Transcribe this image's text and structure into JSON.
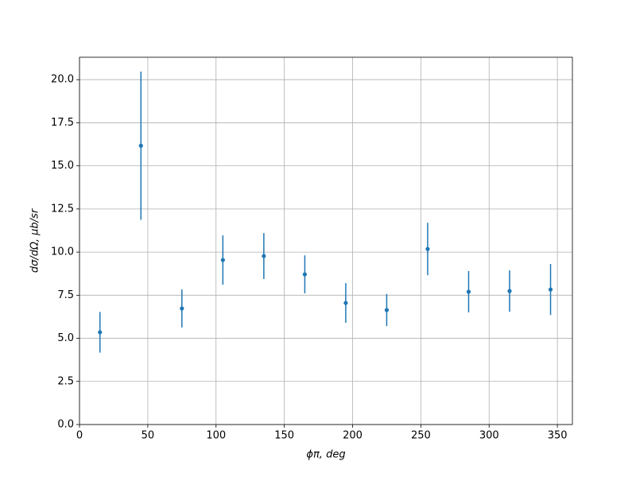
{
  "chart_data": {
    "type": "errorbar",
    "xlabel": "ϕπ, deg",
    "ylabel": "dσ/dΩ, μb/sr",
    "x": [
      15,
      45,
      75,
      105,
      135,
      165,
      195,
      225,
      255,
      285,
      315,
      345
    ],
    "values": [
      5.35,
      16.17,
      6.73,
      9.54,
      9.77,
      8.71,
      7.05,
      6.64,
      10.18,
      7.7,
      7.74,
      7.83
    ],
    "errors": [
      1.18,
      4.3,
      1.1,
      1.43,
      1.33,
      1.1,
      1.15,
      0.93,
      1.52,
      1.2,
      1.2,
      1.48
    ],
    "color": "#1f77b4",
    "xlim": [
      0,
      361
    ],
    "ylim": [
      0,
      21.3
    ],
    "xticks": [
      0,
      50,
      100,
      150,
      200,
      250,
      300,
      350
    ],
    "yticks": [
      {
        "value": 0,
        "label": "0.0"
      },
      2.5,
      {
        "value": 5,
        "label": "5.0"
      },
      7.5,
      {
        "value": 10,
        "label": "10.0"
      },
      12.5,
      {
        "value": 15,
        "label": "15.0"
      },
      17.5,
      {
        "value": 20,
        "label": "20.0"
      }
    ],
    "grid": true
  }
}
